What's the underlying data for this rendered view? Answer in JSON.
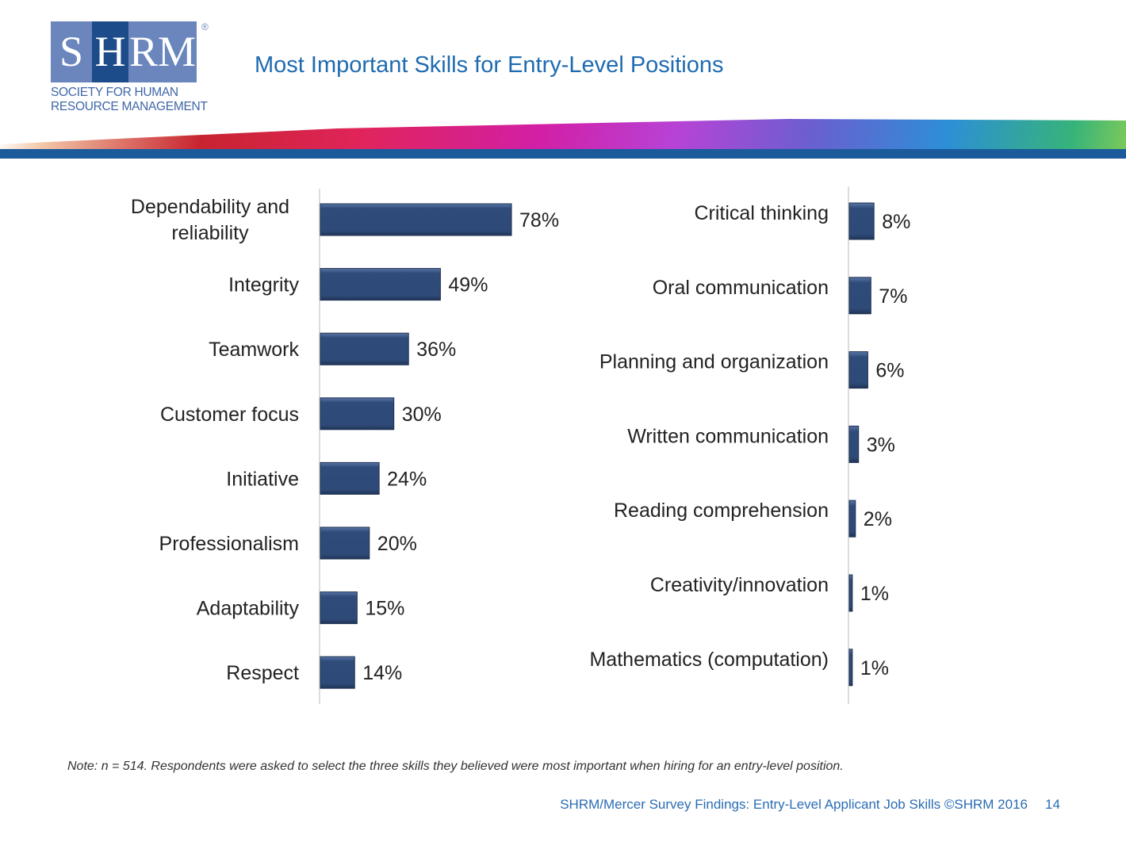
{
  "logo": {
    "text": "SHRM",
    "subtitle_line1": "SOCIETY FOR HUMAN",
    "subtitle_line2": "RESOURCE MANAGEMENT"
  },
  "title": "Most Important Skills for Entry-Level Positions",
  "chart_data": [
    {
      "type": "bar",
      "orientation": "horizontal",
      "categories": [
        "Dependability and reliability",
        "Integrity",
        "Teamwork",
        "Customer focus",
        "Initiative",
        "Professionalism",
        "Adaptability",
        "Respect"
      ],
      "values": [
        78,
        49,
        36,
        30,
        24,
        20,
        15,
        14
      ],
      "data_labels": [
        "78%",
        "49%",
        "36%",
        "30%",
        "24%",
        "20%",
        "15%",
        "14%"
      ],
      "xlim": [
        0,
        100
      ],
      "bar_color": "#2e4a78",
      "grid": false
    },
    {
      "type": "bar",
      "orientation": "horizontal",
      "categories": [
        "Critical thinking",
        "Oral communication",
        "Planning and organization",
        "Written communication",
        "Reading comprehension",
        "Creativity/innovation",
        "Mathematics (computation)"
      ],
      "values": [
        8,
        7,
        6,
        3,
        2,
        1,
        1
      ],
      "data_labels": [
        "8%",
        "7%",
        "6%",
        "3%",
        "2%",
        "1%",
        "1%"
      ],
      "xlim": [
        0,
        100
      ],
      "bar_color": "#2e4a78",
      "grid": false
    }
  ],
  "note": "Note: n = 514. Respondents were asked to select the three skills they believed were most important when hiring for an entry-level position.",
  "footer": "SHRM/Mercer Survey Findings: Entry-Level Applicant Job Skills ©SHRM 2016",
  "page_number": "14"
}
